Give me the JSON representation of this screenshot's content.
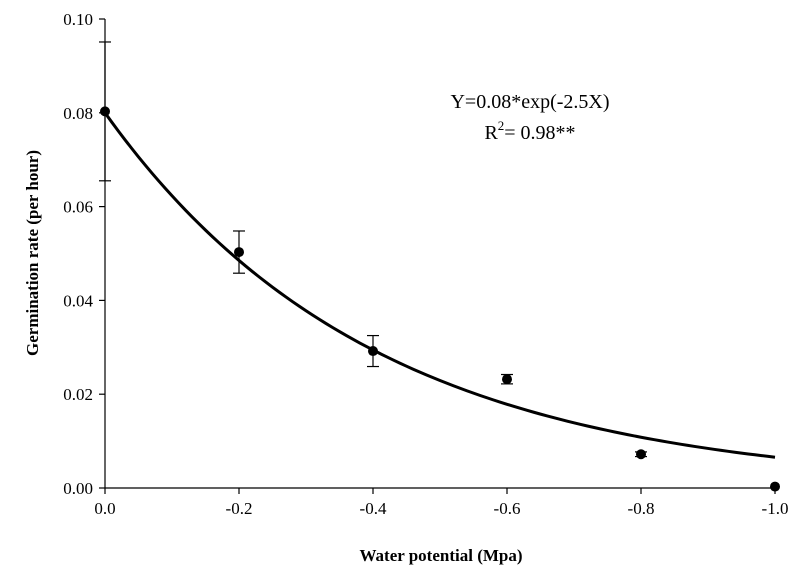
{
  "chart_data": {
    "type": "scatter",
    "xlabel": "Water potential (Mpa)",
    "ylabel": "Germination rate (per hour)",
    "xlim": [
      0.0,
      -1.0
    ],
    "ylim": [
      0.0,
      0.1
    ],
    "x_ticks": [
      "0.0",
      "-0.2",
      "-0.4",
      "-0.6",
      "-0.8",
      "-1.0"
    ],
    "x_tick_values": [
      0.0,
      -0.2,
      -0.4,
      -0.6,
      -0.8,
      -1.0
    ],
    "y_ticks": [
      "0.00",
      "0.02",
      "0.04",
      "0.06",
      "0.08",
      "0.10"
    ],
    "y_tick_values": [
      0.0,
      0.02,
      0.04,
      0.06,
      0.08,
      0.1
    ],
    "grid": false,
    "points": [
      {
        "x": 0.0,
        "y": 0.0803,
        "err": 0.0148
      },
      {
        "x": -0.2,
        "y": 0.0503,
        "err": 0.0045
      },
      {
        "x": -0.4,
        "y": 0.0292,
        "err": 0.0033
      },
      {
        "x": -0.6,
        "y": 0.0232,
        "err": 0.001
      },
      {
        "x": -0.8,
        "y": 0.0072,
        "err": 0.0005
      },
      {
        "x": -1.0,
        "y": 0.0003,
        "err": 0.0
      }
    ],
    "fit": {
      "a": 0.08,
      "b": -2.5
    },
    "annotation": {
      "equation": "Y=0.08*exp(-2.5X)",
      "r2_prefix": "R",
      "r2_sup": "2",
      "r2_value": "= 0.98**"
    },
    "colors": {
      "marker": "#000000",
      "line": "#000000"
    }
  }
}
